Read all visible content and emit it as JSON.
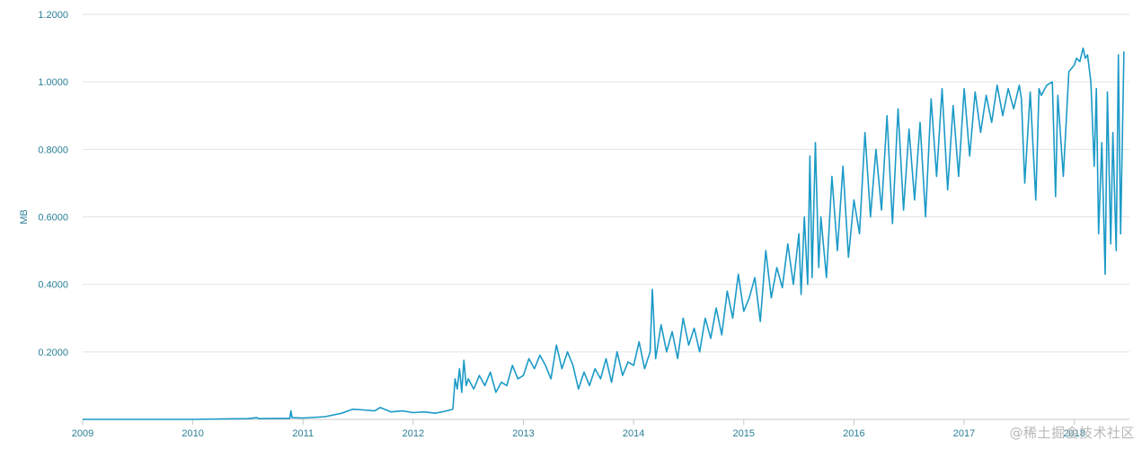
{
  "chart_data": {
    "type": "line",
    "title": "",
    "xlabel": "",
    "ylabel": "MB",
    "xlim": [
      2009,
      2018.5
    ],
    "ylim": [
      0,
      1.2
    ],
    "y_ticks": [
      {
        "value": 0.2,
        "label": "0.2000"
      },
      {
        "value": 0.4,
        "label": "0.4000"
      },
      {
        "value": 0.6,
        "label": "0.6000"
      },
      {
        "value": 0.8,
        "label": "0.8000"
      },
      {
        "value": 1.0,
        "label": "1.0000"
      },
      {
        "value": 1.2,
        "label": "1.2000"
      }
    ],
    "x_ticks": [
      {
        "value": 2009,
        "label": "2009"
      },
      {
        "value": 2010,
        "label": "2010"
      },
      {
        "value": 2011,
        "label": "2011"
      },
      {
        "value": 2012,
        "label": "2012"
      },
      {
        "value": 2013,
        "label": "2013"
      },
      {
        "value": 2014,
        "label": "2014"
      },
      {
        "value": 2015,
        "label": "2015"
      },
      {
        "value": 2016,
        "label": "2016"
      },
      {
        "value": 2017,
        "label": "2017"
      },
      {
        "value": 2018,
        "label": "2018"
      }
    ],
    "grid": true,
    "legend": "none",
    "series": [
      {
        "color": "#1b9ac7",
        "x": [
          2009.0,
          2009.5,
          2010.0,
          2010.5,
          2010.58,
          2010.6,
          2010.8,
          2010.88,
          2010.89,
          2010.9,
          2011.0,
          2011.2,
          2011.35,
          2011.45,
          2011.55,
          2011.65,
          2011.7,
          2011.8,
          2011.9,
          2012.0,
          2012.1,
          2012.2,
          2012.3,
          2012.36,
          2012.38,
          2012.4,
          2012.42,
          2012.44,
          2012.46,
          2012.48,
          2012.5,
          2012.55,
          2012.6,
          2012.65,
          2012.7,
          2012.75,
          2012.8,
          2012.85,
          2012.9,
          2012.95,
          2013.0,
          2013.05,
          2013.1,
          2013.15,
          2013.2,
          2013.25,
          2013.3,
          2013.35,
          2013.4,
          2013.45,
          2013.5,
          2013.55,
          2013.6,
          2013.65,
          2013.7,
          2013.75,
          2013.8,
          2013.85,
          2013.9,
          2013.95,
          2014.0,
          2014.05,
          2014.1,
          2014.15,
          2014.17,
          2014.2,
          2014.25,
          2014.3,
          2014.35,
          2014.4,
          2014.45,
          2014.5,
          2014.55,
          2014.6,
          2014.65,
          2014.7,
          2014.75,
          2014.8,
          2014.85,
          2014.9,
          2014.95,
          2015.0,
          2015.05,
          2015.1,
          2015.15,
          2015.2,
          2015.25,
          2015.3,
          2015.35,
          2015.4,
          2015.45,
          2015.5,
          2015.52,
          2015.55,
          2015.58,
          2015.6,
          2015.62,
          2015.65,
          2015.68,
          2015.7,
          2015.75,
          2015.8,
          2015.85,
          2015.9,
          2015.95,
          2016.0,
          2016.05,
          2016.1,
          2016.15,
          2016.2,
          2016.25,
          2016.3,
          2016.35,
          2016.4,
          2016.45,
          2016.5,
          2016.55,
          2016.6,
          2016.65,
          2016.7,
          2016.75,
          2016.8,
          2016.85,
          2016.9,
          2016.95,
          2017.0,
          2017.05,
          2017.1,
          2017.15,
          2017.2,
          2017.25,
          2017.3,
          2017.35,
          2017.4,
          2017.45,
          2017.5,
          2017.52,
          2017.55,
          2017.6,
          2017.65,
          2017.68,
          2017.7,
          2017.75,
          2017.8,
          2017.83,
          2017.85,
          2017.9,
          2017.95,
          2018.0,
          2018.02,
          2018.05,
          2018.08,
          2018.1,
          2018.12,
          2018.15,
          2018.18,
          2018.2,
          2018.22,
          2018.25,
          2018.28,
          2018.3,
          2018.33,
          2018.35,
          2018.38,
          2018.4,
          2018.42,
          2018.45
        ],
        "y": [
          0.0,
          0.0,
          0.0,
          0.002,
          0.005,
          0.002,
          0.003,
          0.003,
          0.025,
          0.005,
          0.004,
          0.008,
          0.018,
          0.03,
          0.028,
          0.025,
          0.035,
          0.022,
          0.025,
          0.02,
          0.022,
          0.018,
          0.025,
          0.03,
          0.12,
          0.09,
          0.15,
          0.08,
          0.175,
          0.1,
          0.12,
          0.09,
          0.13,
          0.1,
          0.14,
          0.08,
          0.11,
          0.1,
          0.16,
          0.12,
          0.13,
          0.18,
          0.15,
          0.19,
          0.16,
          0.12,
          0.22,
          0.15,
          0.2,
          0.16,
          0.09,
          0.14,
          0.1,
          0.15,
          0.12,
          0.18,
          0.11,
          0.2,
          0.13,
          0.17,
          0.16,
          0.23,
          0.15,
          0.2,
          0.385,
          0.18,
          0.28,
          0.2,
          0.26,
          0.18,
          0.3,
          0.22,
          0.27,
          0.2,
          0.3,
          0.24,
          0.33,
          0.25,
          0.38,
          0.3,
          0.43,
          0.32,
          0.36,
          0.42,
          0.29,
          0.5,
          0.36,
          0.45,
          0.39,
          0.52,
          0.4,
          0.55,
          0.37,
          0.6,
          0.4,
          0.78,
          0.42,
          0.82,
          0.45,
          0.6,
          0.42,
          0.72,
          0.5,
          0.75,
          0.48,
          0.65,
          0.55,
          0.85,
          0.6,
          0.8,
          0.62,
          0.9,
          0.58,
          0.92,
          0.62,
          0.86,
          0.65,
          0.88,
          0.6,
          0.95,
          0.72,
          0.98,
          0.68,
          0.93,
          0.72,
          0.98,
          0.78,
          0.97,
          0.85,
          0.96,
          0.88,
          0.99,
          0.9,
          0.98,
          0.92,
          0.99,
          0.95,
          0.7,
          0.97,
          0.65,
          0.98,
          0.96,
          0.99,
          1.0,
          0.66,
          0.96,
          0.72,
          1.03,
          1.05,
          1.07,
          1.06,
          1.1,
          1.07,
          1.08,
          1.0,
          0.75,
          0.98,
          0.55,
          0.82,
          0.43,
          0.97,
          0.52,
          0.85,
          0.5,
          1.08,
          0.55,
          1.09
        ]
      }
    ]
  },
  "watermark": "@稀土掘金技术社区"
}
